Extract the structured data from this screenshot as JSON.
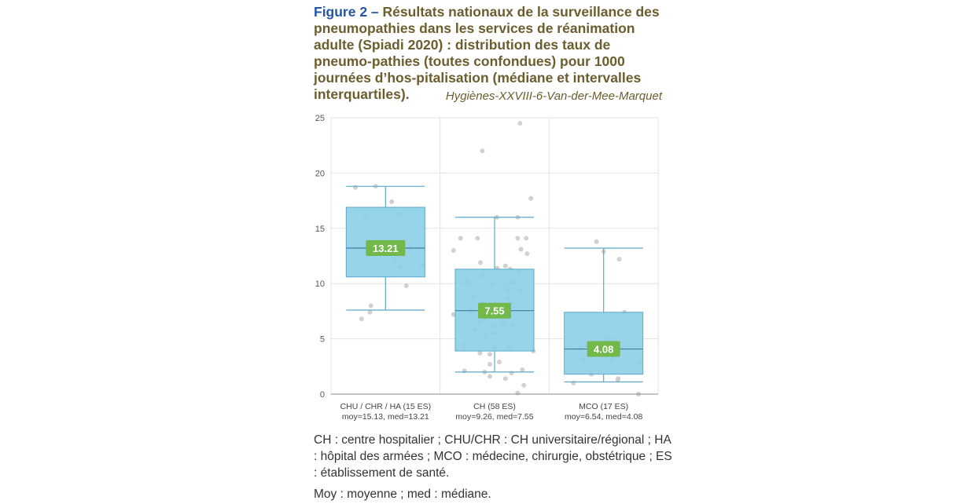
{
  "caption": {
    "label": "Figure 2 –",
    "text": " Résultats nationaux de la surveillance des pneumopathies dans les services de réanimation adulte (Spiadi 2020) : distribution des taux de pneumo-pathies (toutes confondues) pour 1000 journées d’hos-pitalisation (médiane et intervalles interquartiles).",
    "source": "Hygiènes-XXVIII-6-Van-der-Mee-Marquet"
  },
  "chart_data": {
    "type": "box",
    "ylim": [
      0,
      25
    ],
    "yticks": [
      0,
      5,
      10,
      15,
      20,
      25
    ],
    "grid": true,
    "colors": {
      "box": "#89cde6",
      "box_stroke": "#5aa9cc",
      "whisker": "#5aa9cc",
      "median_label_bg": "#72b84a",
      "points": "#c9c9c9",
      "grid": "#e3e3e3"
    },
    "groups": [
      {
        "label": "CHU / CHR / HA (15 ES)",
        "sublabel": "moy=15.13, med=13.21",
        "q1": 10.6,
        "median": 13.21,
        "q3": 16.9,
        "whisker_low": 7.6,
        "whisker_high": 18.8,
        "median_label": "13.21",
        "points": [
          [
            -0.64,
            18.7
          ],
          [
            -0.21,
            18.8
          ],
          [
            0.13,
            17.4
          ],
          [
            0.31,
            16.3
          ],
          [
            -0.43,
            16.0
          ],
          [
            0.54,
            13.2
          ],
          [
            0.77,
            11.7
          ],
          [
            0.31,
            11.5
          ],
          [
            0.44,
            9.8
          ],
          [
            -0.31,
            8.0
          ],
          [
            -0.33,
            7.4
          ],
          [
            -0.51,
            6.8
          ],
          [
            -0.33,
            13.2
          ],
          [
            0.0,
            13.3
          ],
          [
            0.2,
            12.0
          ]
        ]
      },
      {
        "label": "CH (58 ES)",
        "sublabel": "moy=9.26, med=7.55",
        "q1": 3.9,
        "median": 7.55,
        "q3": 11.3,
        "whisker_low": 2.0,
        "whisker_high": 16.0,
        "median_label": "7.55",
        "points": [
          [
            0.54,
            24.5
          ],
          [
            -0.26,
            22.0
          ],
          [
            0.77,
            17.7
          ],
          [
            0.05,
            16.0
          ],
          [
            0.49,
            16.0
          ],
          [
            -0.72,
            14.1
          ],
          [
            -0.36,
            14.1
          ],
          [
            0.49,
            14.1
          ],
          [
            0.67,
            14.1
          ],
          [
            0.56,
            13.1
          ],
          [
            -0.87,
            13.0
          ],
          [
            0.69,
            12.7
          ],
          [
            -0.3,
            11.9
          ],
          [
            0.23,
            11.6
          ],
          [
            0.05,
            11.4
          ],
          [
            0.33,
            11.3
          ],
          [
            0.51,
            11.1
          ],
          [
            -0.26,
            10.7
          ],
          [
            0.4,
            10.1
          ],
          [
            -0.59,
            10.1
          ],
          [
            -0.05,
            9.9
          ],
          [
            0.28,
            9.5
          ],
          [
            0.54,
            9.4
          ],
          [
            -0.46,
            8.8
          ],
          [
            0.28,
            8.7
          ],
          [
            0.36,
            8.2
          ],
          [
            -0.26,
            8.2
          ],
          [
            -0.15,
            8.0
          ],
          [
            0.18,
            7.9
          ],
          [
            0.03,
            7.7
          ],
          [
            -0.49,
            7.5
          ],
          [
            0.31,
            7.4
          ],
          [
            -0.87,
            7.2
          ],
          [
            0.1,
            7.1
          ],
          [
            -0.23,
            6.8
          ],
          [
            -0.33,
            6.6
          ],
          [
            0.18,
            6.5
          ],
          [
            0.0,
            6.2
          ],
          [
            0.38,
            6.2
          ],
          [
            -0.41,
            5.8
          ],
          [
            0.0,
            5.5
          ],
          [
            -0.18,
            5.3
          ],
          [
            -0.64,
            4.4
          ],
          [
            0.0,
            4.2
          ],
          [
            0.31,
            4.3
          ],
          [
            0.82,
            3.9
          ],
          [
            -0.31,
            3.7
          ],
          [
            -0.1,
            3.6
          ],
          [
            0.1,
            2.9
          ],
          [
            -0.1,
            2.7
          ],
          [
            0.59,
            2.2
          ],
          [
            -0.64,
            2.1
          ],
          [
            -0.21,
            2.0
          ],
          [
            0.36,
            1.9
          ],
          [
            -0.1,
            1.6
          ],
          [
            0.23,
            1.4
          ],
          [
            0.62,
            0.8
          ],
          [
            0.49,
            0.1
          ]
        ]
      },
      {
        "label": "MCO (17 ES)",
        "sublabel": "moy=6.54, med=4.08",
        "q1": 1.8,
        "median": 4.08,
        "q3": 7.4,
        "whisker_low": 1.1,
        "whisker_high": 13.2,
        "median_label": "4.08",
        "points": [
          [
            -0.15,
            13.8
          ],
          [
            0.0,
            12.9
          ],
          [
            0.33,
            12.2
          ],
          [
            0.44,
            7.4
          ],
          [
            0.13,
            5.0
          ],
          [
            -0.51,
            4.2
          ],
          [
            -0.36,
            4.4
          ],
          [
            -0.23,
            3.8
          ],
          [
            -0.44,
            3.2
          ],
          [
            0.18,
            3.1
          ],
          [
            0.77,
            2.8
          ],
          [
            -0.26,
            1.8
          ],
          [
            0.31,
            1.4
          ],
          [
            0.3,
            1.3
          ],
          [
            -0.64,
            1.0
          ],
          [
            0.74,
            0.0
          ],
          [
            0.1,
            4.4
          ]
        ]
      }
    ]
  },
  "legend": {
    "line1": "CH : centre hospitalier ; CHU/CHR : CH universitaire/régional ; HA : hôpital des armées ; MCO : médecine, chirurgie, obstétrique ; ES : établissement de santé.",
    "line2": "Moy : moyenne ; med : médiane."
  }
}
